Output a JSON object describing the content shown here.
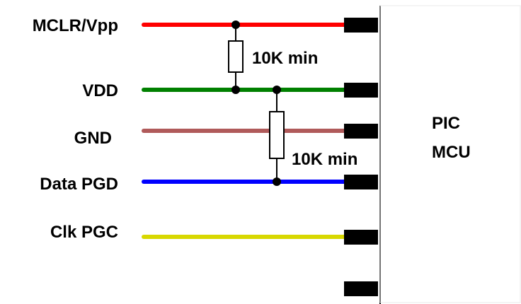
{
  "signals": [
    {
      "label": "MCLR/Vpp",
      "color": "#ff0000"
    },
    {
      "label": "VDD",
      "color": "#008000"
    },
    {
      "label": "GND",
      "color": "#b05a5a"
    },
    {
      "label": "Data PGD",
      "color": "#0000ff"
    },
    {
      "label": "Clk PGC",
      "color": "#d8d800"
    }
  ],
  "resistors": [
    {
      "value": "10K min",
      "between": [
        "MCLR/Vpp",
        "VDD"
      ]
    },
    {
      "value": "10K min",
      "between": [
        "VDD",
        "Data PGD"
      ]
    }
  ],
  "mcu": {
    "line1": "PIC",
    "line2": "MCU"
  }
}
